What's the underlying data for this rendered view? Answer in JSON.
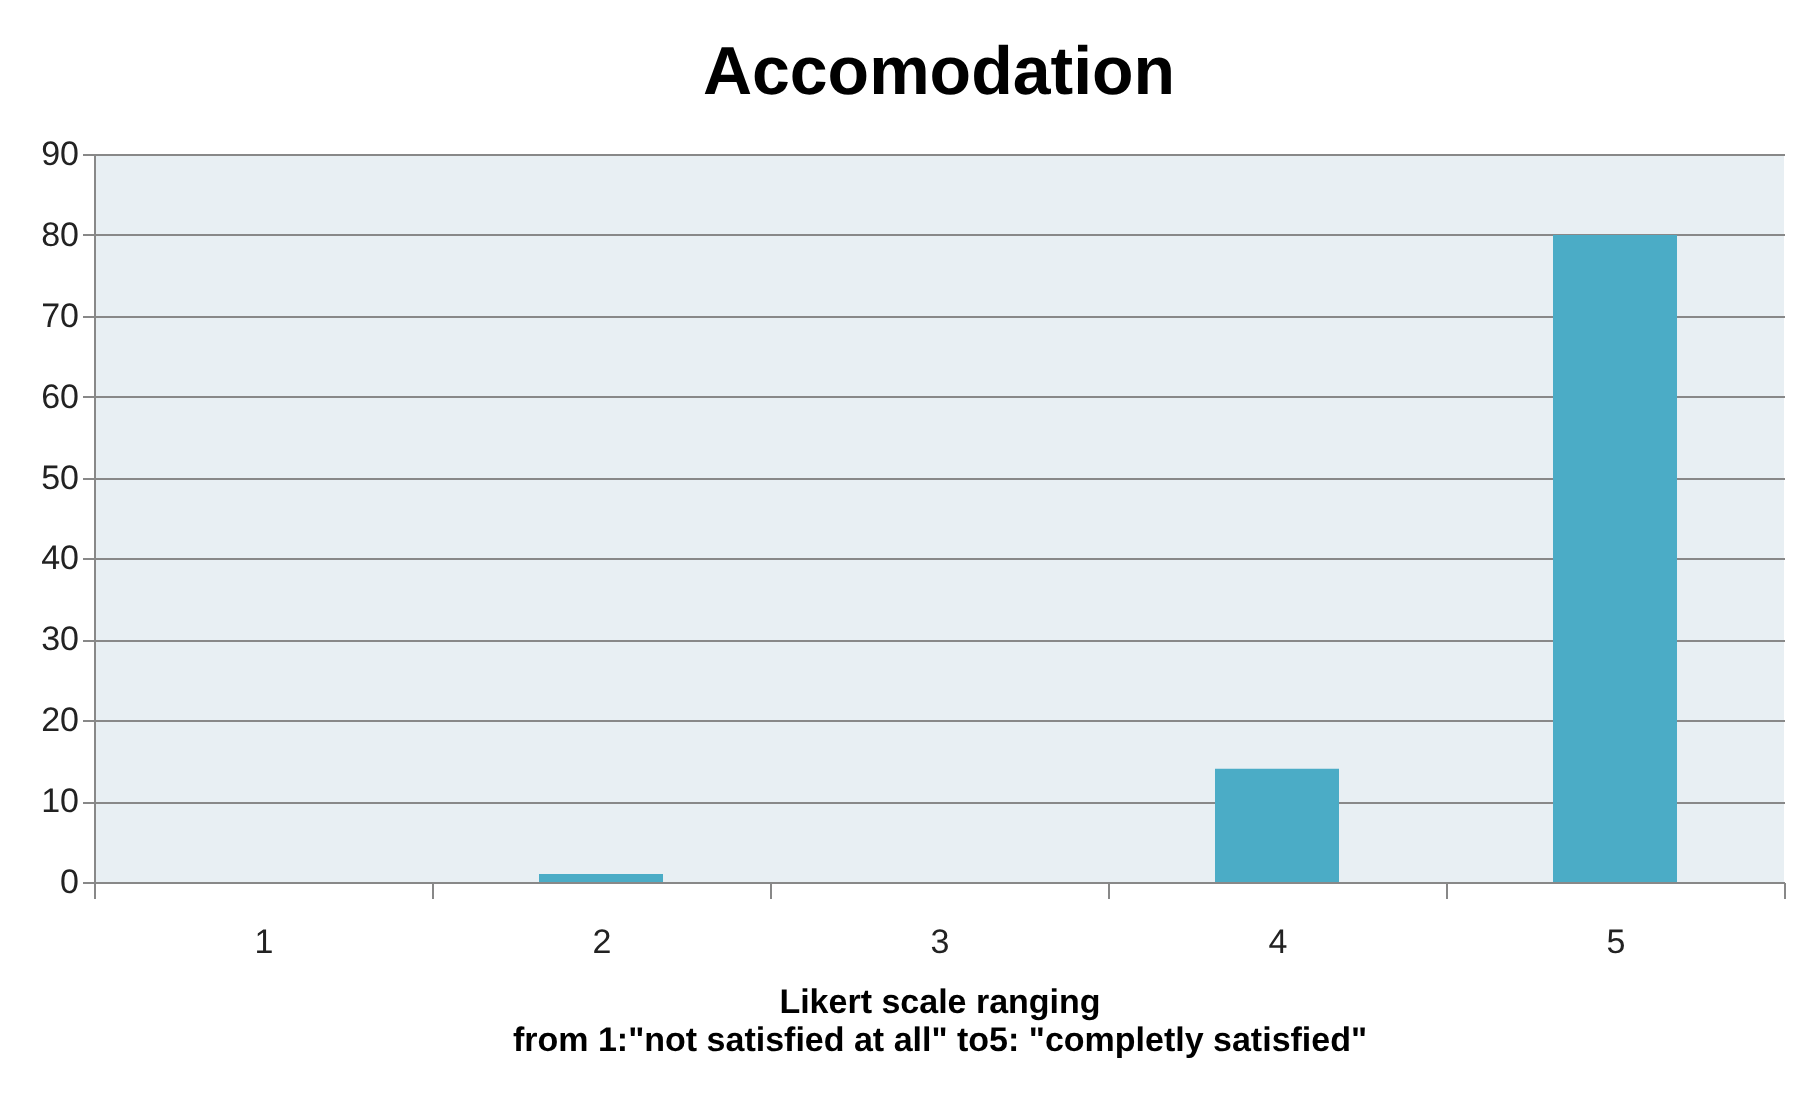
{
  "chart_data": {
    "type": "bar",
    "title": "Accomodation",
    "xlabel": "Likert scale ranging\nfrom 1:\"not satisfied at all\" to5: \"completly satisfied\"",
    "categories": [
      "1",
      "2",
      "3",
      "4",
      "5"
    ],
    "values": [
      0,
      1,
      0,
      14,
      80
    ],
    "color": "#4bacc6",
    "ylim": [
      0,
      90
    ],
    "yticks": [
      0,
      10,
      20,
      30,
      40,
      50,
      60,
      70,
      80,
      90
    ],
    "grid": "y"
  }
}
